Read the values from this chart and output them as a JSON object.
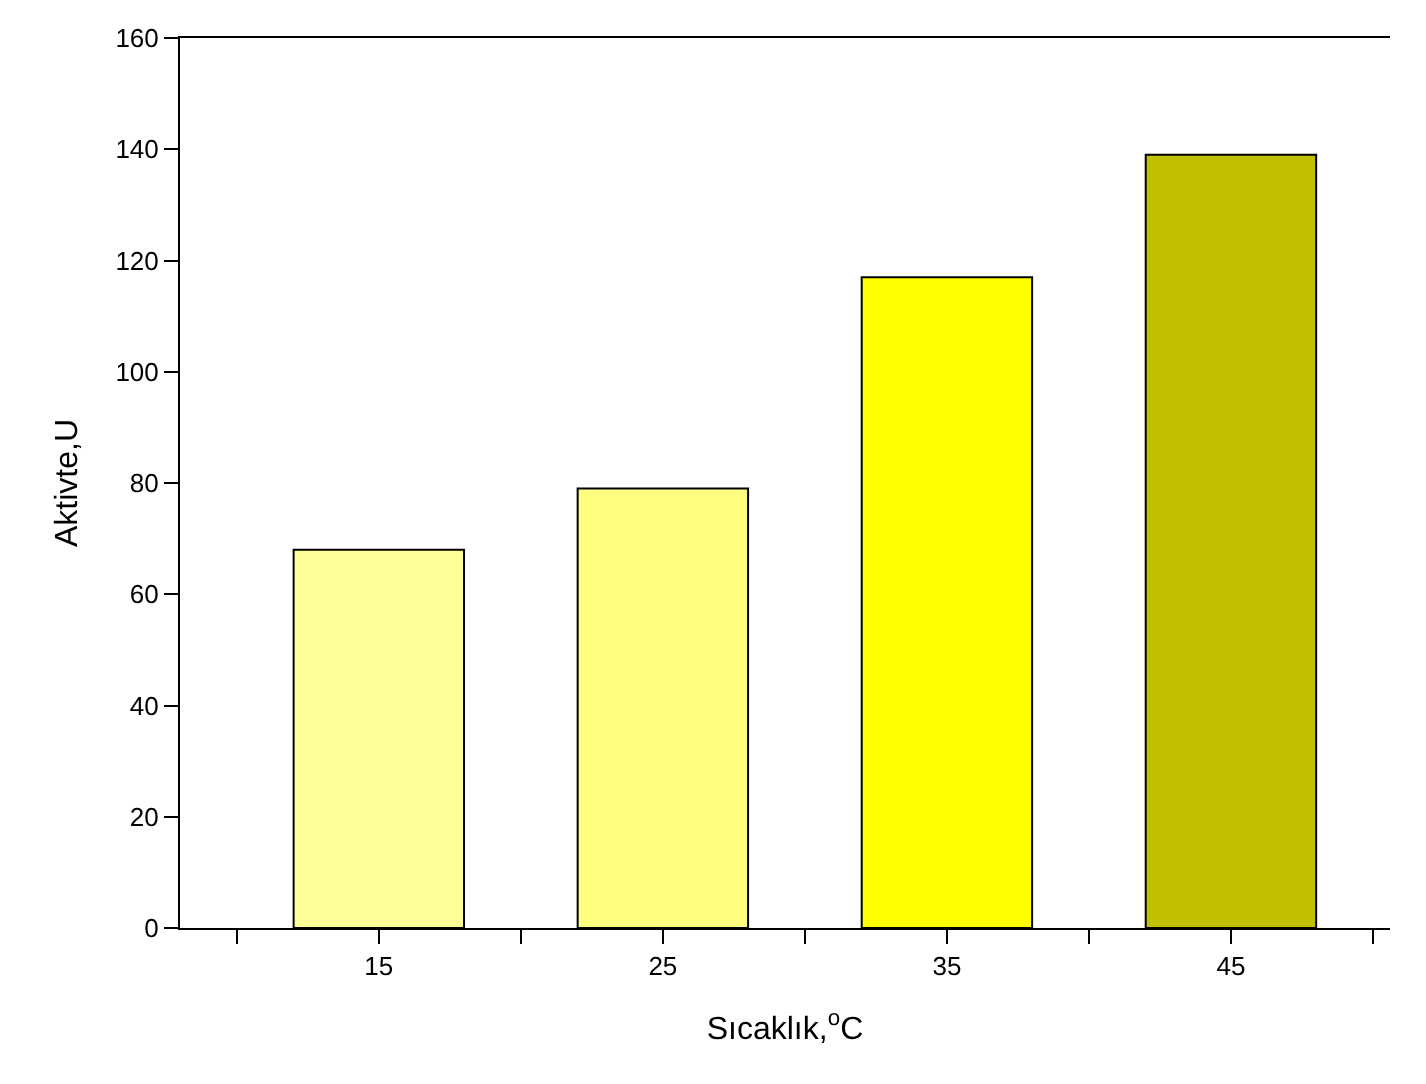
{
  "chart_data": {
    "type": "bar",
    "x": [
      15,
      25,
      35,
      45
    ],
    "values": [
      68,
      79,
      117,
      139
    ],
    "colors": [
      "#ffff99",
      "#ffff7f",
      "#ffff00",
      "#c0c000"
    ],
    "xlabel": "Sıcaklık,$^{o}$C",
    "ylabel": "Aktivte,U",
    "xlim": [
      8,
      50.6
    ],
    "xticks": [
      {
        "value": 10,
        "label": null
      },
      15,
      {
        "value": 20,
        "label": null
      },
      25,
      {
        "value": 30,
        "label": null
      },
      35,
      {
        "value": 40,
        "label": null
      },
      45,
      {
        "value": 50,
        "label": null
      }
    ],
    "ylim": [
      0,
      160
    ],
    "yticks": [
      0,
      20,
      40,
      60,
      80,
      100,
      120,
      140,
      160
    ]
  }
}
